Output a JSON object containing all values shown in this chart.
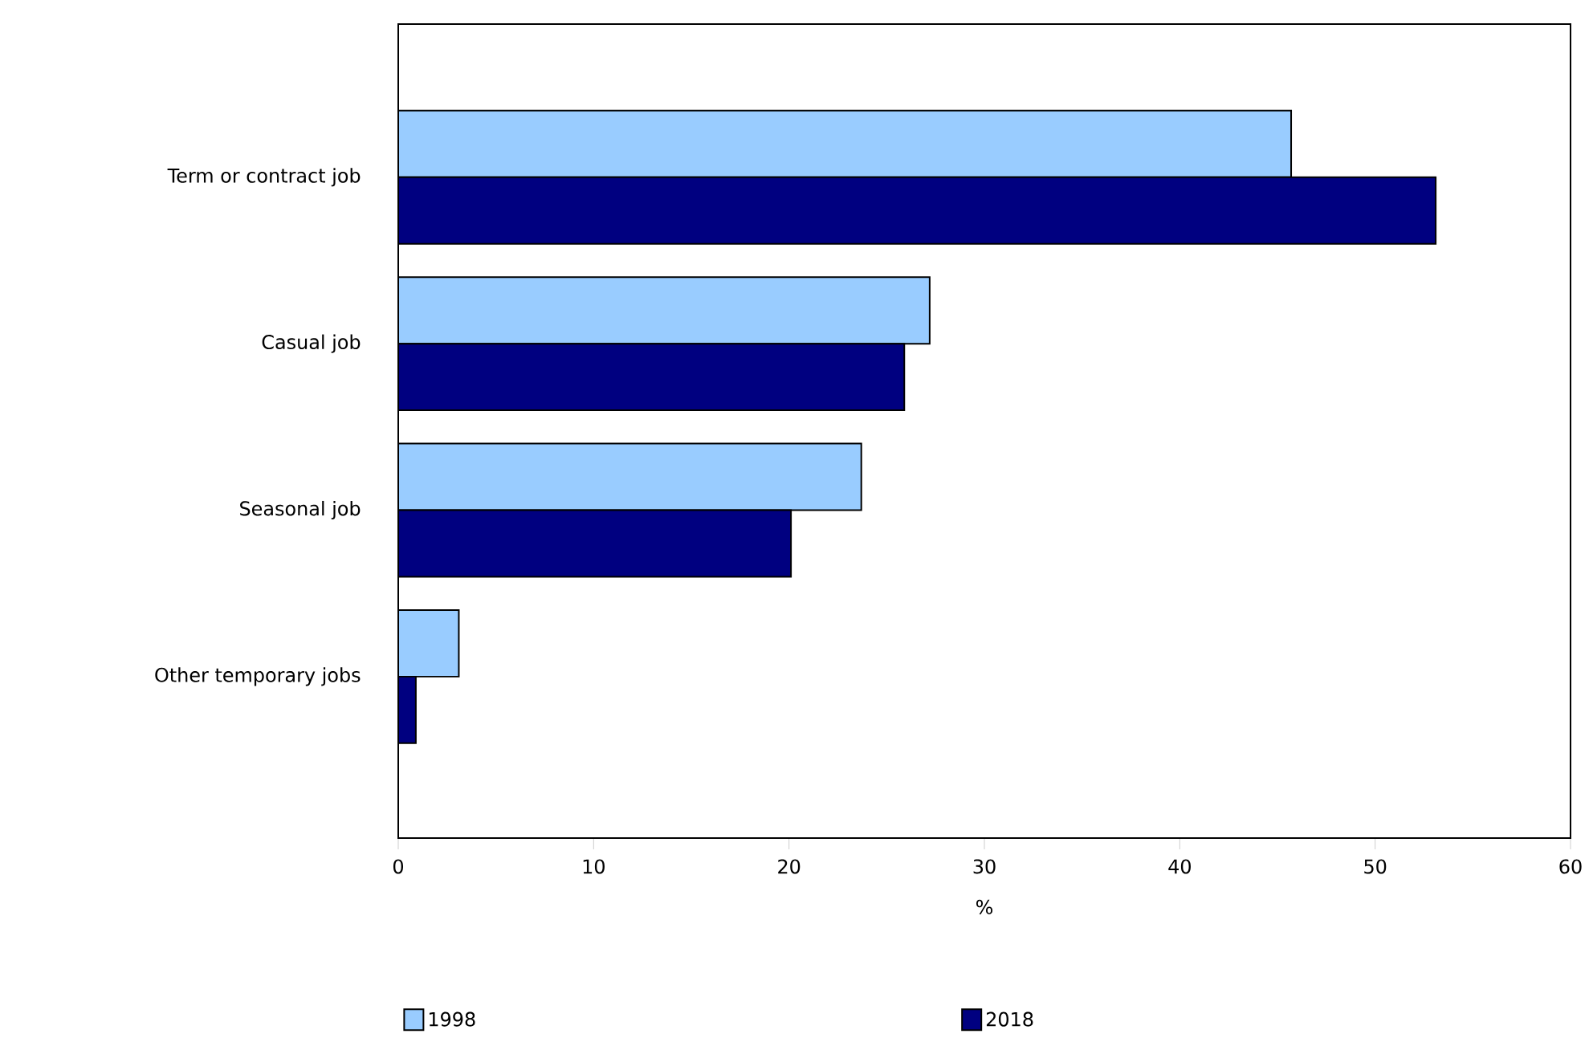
{
  "chart_data": {
    "type": "bar",
    "orientation": "horizontal",
    "xlabel": "%",
    "categories": [
      "Term or contract job",
      "Casual job",
      "Seasonal job",
      "Other temporary jobs"
    ],
    "series": [
      {
        "name": "1998",
        "color": "#99ccff",
        "values": [
          45.7,
          27.2,
          23.7,
          3.1
        ]
      },
      {
        "name": "2018",
        "color": "#000080",
        "values": [
          53.1,
          25.9,
          20.1,
          0.9
        ]
      }
    ],
    "xlim": [
      0,
      60
    ],
    "xticks": [
      0,
      10,
      20,
      30,
      40,
      50,
      60
    ],
    "legend": "bottom"
  }
}
